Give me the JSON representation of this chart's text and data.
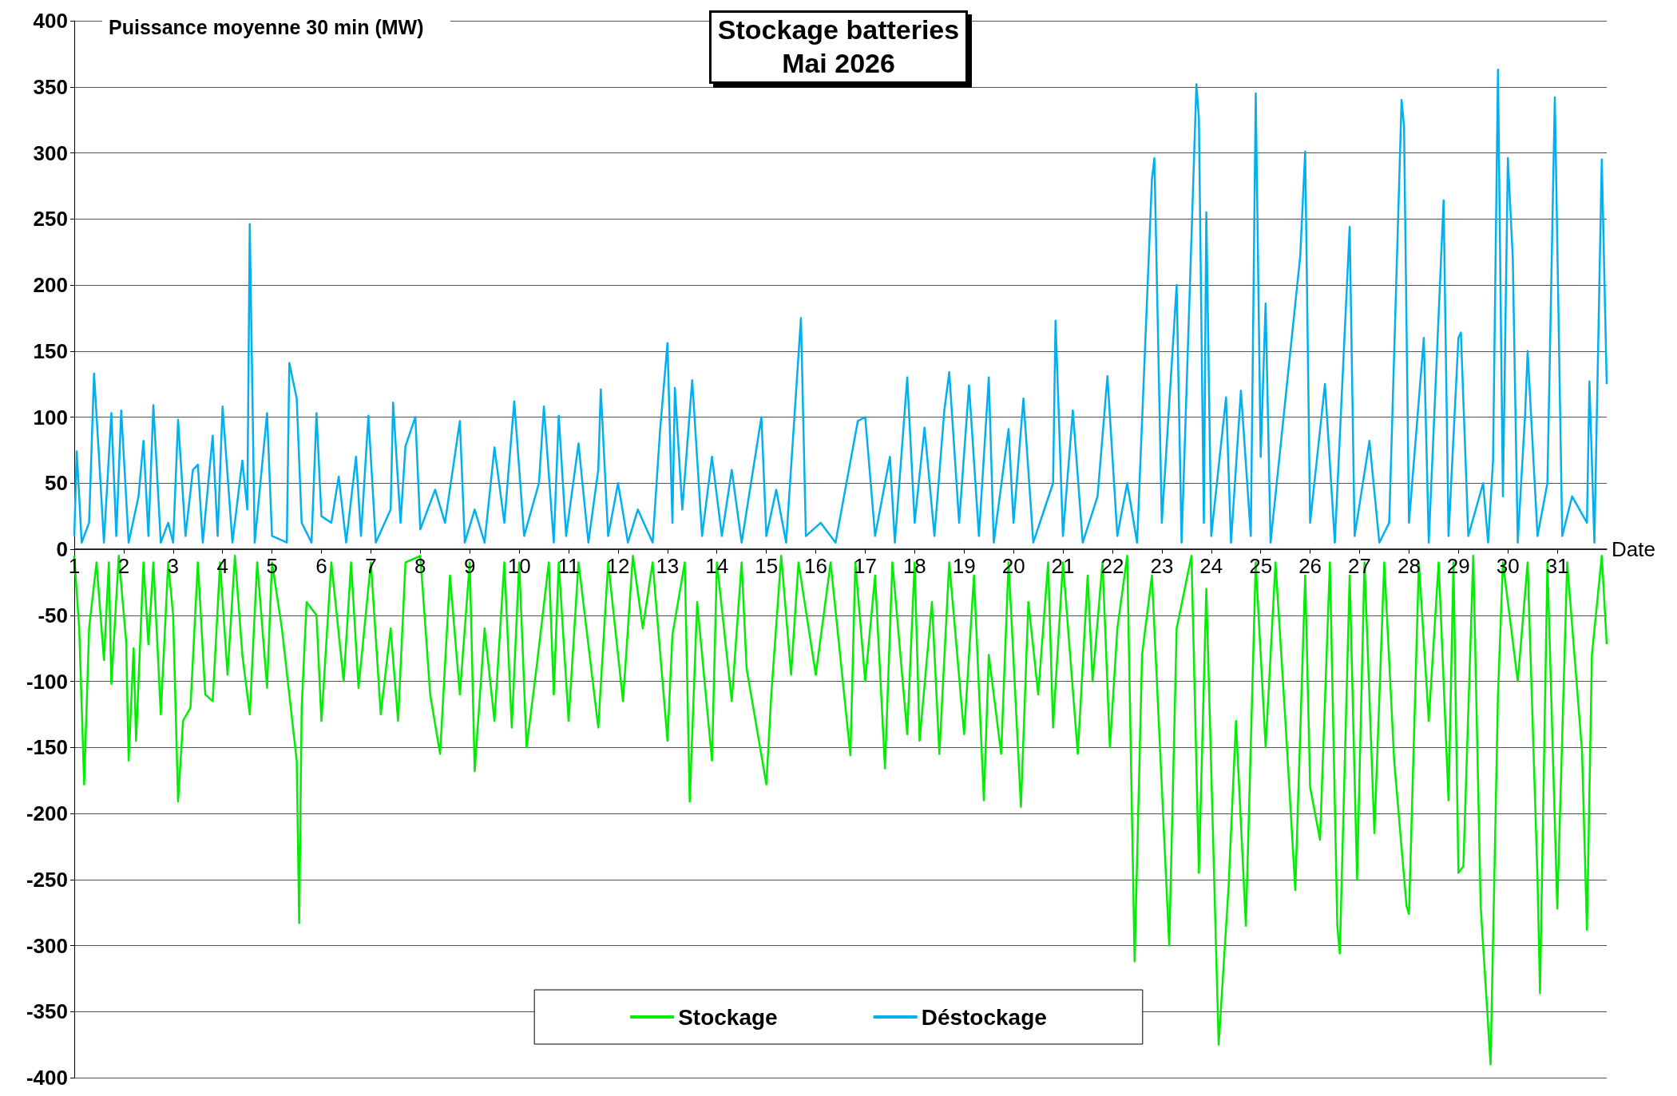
{
  "chart_data": {
    "type": "line",
    "title": "Stockage batteries",
    "subtitle": "Mai 2026",
    "ylabel": "Puissance moyenne 30 min (MW)",
    "xlabel": "Date",
    "xlim": [
      1,
      32
    ],
    "xticks": [
      1,
      2,
      3,
      4,
      5,
      6,
      7,
      8,
      9,
      10,
      11,
      12,
      13,
      14,
      15,
      16,
      17,
      18,
      19,
      20,
      21,
      22,
      23,
      24,
      25,
      26,
      27,
      28,
      29,
      30,
      31
    ],
    "ylim": [
      -400,
      400
    ],
    "yticks": [
      -400,
      -350,
      -300,
      -250,
      -200,
      -150,
      -100,
      -50,
      0,
      50,
      100,
      150,
      200,
      250,
      300,
      350,
      400
    ],
    "grid": "y",
    "legend": "bottom",
    "marker": "none",
    "line_style": "solid",
    "series": [
      {
        "name": "Stockage",
        "color": "#00ee00",
        "x": [
          1.0,
          1.1,
          1.2,
          1.3,
          1.45,
          1.6,
          1.7,
          1.75,
          1.9,
          2.05,
          2.1,
          2.2,
          2.25,
          2.4,
          2.5,
          2.6,
          2.75,
          2.9,
          3.0,
          3.1,
          3.2,
          3.35,
          3.5,
          3.65,
          3.8,
          3.95,
          4.1,
          4.25,
          4.4,
          4.55,
          4.7,
          4.9,
          5.0,
          5.2,
          5.5,
          5.55,
          5.6,
          5.7,
          5.9,
          6.0,
          6.2,
          6.45,
          6.6,
          6.75,
          7.0,
          7.2,
          7.4,
          7.55,
          7.7,
          8.0,
          8.2,
          8.4,
          8.6,
          8.8,
          9.0,
          9.1,
          9.3,
          9.5,
          9.7,
          9.85,
          10.0,
          10.15,
          10.35,
          10.6,
          10.7,
          10.8,
          11.0,
          11.2,
          11.6,
          11.8,
          12.1,
          12.3,
          12.5,
          12.7,
          13.0,
          13.1,
          13.35,
          13.45,
          13.6,
          13.9,
          14.0,
          14.3,
          14.5,
          14.6,
          15.0,
          15.1,
          15.3,
          15.5,
          15.65,
          16.0,
          16.3,
          16.7,
          16.8,
          17.0,
          17.2,
          17.4,
          17.55,
          17.85,
          18.0,
          18.1,
          18.35,
          18.5,
          18.7,
          19.0,
          19.2,
          19.4,
          19.5,
          19.75,
          19.9,
          20.15,
          20.3,
          20.5,
          20.7,
          20.8,
          21.0,
          21.3,
          21.5,
          21.6,
          21.8,
          21.95,
          22.1,
          22.3,
          22.45,
          22.6,
          22.8,
          23.15,
          23.3,
          23.6,
          23.75,
          23.9,
          24.15,
          24.35,
          24.5,
          24.7,
          24.9,
          25.1,
          25.3,
          25.5,
          25.7,
          25.9,
          26.0,
          26.2,
          26.4,
          26.55,
          26.6,
          26.8,
          26.95,
          27.1,
          27.3,
          27.5,
          27.7,
          27.95,
          28.0,
          28.2,
          28.4,
          28.6,
          28.8,
          28.9,
          29.0,
          29.1,
          29.3,
          29.45,
          29.65,
          29.8,
          29.9,
          30.2,
          30.4,
          30.6,
          30.65,
          30.8,
          31.0,
          31.2,
          31.5,
          31.6,
          31.7,
          31.9,
          32.0
        ],
        "values": [
          -5,
          -60,
          -178,
          -60,
          -10,
          -84,
          -10,
          -102,
          -5,
          -70,
          -160,
          -75,
          -145,
          -10,
          -72,
          -10,
          -125,
          -10,
          -50,
          -191,
          -130,
          -120,
          -10,
          -110,
          -115,
          -10,
          -95,
          -5,
          -80,
          -125,
          -10,
          -105,
          -10,
          -60,
          -160,
          -283,
          -120,
          -40,
          -50,
          -130,
          -10,
          -100,
          -10,
          -105,
          -10,
          -125,
          -60,
          -130,
          -10,
          -5,
          -110,
          -155,
          -20,
          -110,
          -10,
          -168,
          -60,
          -130,
          -10,
          -135,
          -10,
          -150,
          -90,
          -10,
          -110,
          -10,
          -130,
          -10,
          -135,
          -10,
          -115,
          -5,
          -60,
          -10,
          -145,
          -65,
          -10,
          -191,
          -40,
          -160,
          -10,
          -115,
          -10,
          -90,
          -178,
          -110,
          -5,
          -95,
          -10,
          -95,
          -10,
          -156,
          -10,
          -100,
          -20,
          -166,
          -10,
          -140,
          -10,
          -145,
          -40,
          -155,
          -10,
          -140,
          -20,
          -190,
          -80,
          -155,
          -10,
          -195,
          -40,
          -110,
          -10,
          -135,
          -10,
          -155,
          -20,
          -100,
          -10,
          -150,
          -60,
          -5,
          -312,
          -80,
          -20,
          -300,
          -60,
          -5,
          -245,
          -30,
          -375,
          -256,
          -130,
          -285,
          -10,
          -150,
          -10,
          -130,
          -258,
          -20,
          -180,
          -220,
          -10,
          -285,
          -306,
          -20,
          -250,
          -10,
          -215,
          -10,
          -160,
          -270,
          -276,
          -10,
          -130,
          -10,
          -190,
          -10,
          -245,
          -240,
          -5,
          -270,
          -390,
          -110,
          -10,
          -100,
          -10,
          -250,
          -336,
          -10,
          -272,
          -10,
          -153,
          -288,
          -80,
          -5,
          -72
        ]
      },
      {
        "name": "Déstockage",
        "color": "#00b0f0",
        "x": [
          1.0,
          1.05,
          1.15,
          1.3,
          1.4,
          1.5,
          1.6,
          1.75,
          1.85,
          1.95,
          2.1,
          2.3,
          2.4,
          2.5,
          2.6,
          2.75,
          2.9,
          3.0,
          3.1,
          3.25,
          3.4,
          3.5,
          3.6,
          3.8,
          3.9,
          4.0,
          4.2,
          4.4,
          4.5,
          4.55,
          4.65,
          4.9,
          5.0,
          5.3,
          5.35,
          5.5,
          5.6,
          5.8,
          5.9,
          6.0,
          6.2,
          6.35,
          6.5,
          6.7,
          6.8,
          6.95,
          7.1,
          7.4,
          7.45,
          7.6,
          7.7,
          7.9,
          8.0,
          8.3,
          8.5,
          8.8,
          8.9,
          9.1,
          9.3,
          9.5,
          9.7,
          9.9,
          10.1,
          10.4,
          10.5,
          10.7,
          10.8,
          10.95,
          11.2,
          11.4,
          11.6,
          11.65,
          11.8,
          12.0,
          12.2,
          12.4,
          12.7,
          12.85,
          13.0,
          13.1,
          13.15,
          13.3,
          13.5,
          13.7,
          13.9,
          14.1,
          14.3,
          14.5,
          14.9,
          15.0,
          15.2,
          15.4,
          15.7,
          15.8,
          16.1,
          16.4,
          16.85,
          17.0,
          17.2,
          17.5,
          17.6,
          17.85,
          18.0,
          18.2,
          18.4,
          18.6,
          18.7,
          18.9,
          19.1,
          19.3,
          19.5,
          19.6,
          19.9,
          20.0,
          20.2,
          20.4,
          20.8,
          20.85,
          21.0,
          21.2,
          21.4,
          21.7,
          21.9,
          22.1,
          22.3,
          22.5,
          22.8,
          22.85,
          23.0,
          23.3,
          23.4,
          23.7,
          23.75,
          23.85,
          23.9,
          24.0,
          24.3,
          24.4,
          24.6,
          24.8,
          24.9,
          25.0,
          25.1,
          25.2,
          25.8,
          25.9,
          26.0,
          26.3,
          26.5,
          26.8,
          26.9,
          27.2,
          27.4,
          27.6,
          27.85,
          27.9,
          28.0,
          28.3,
          28.4,
          28.7,
          28.8,
          29.0,
          29.05,
          29.2,
          29.5,
          29.6,
          29.7,
          29.8,
          29.9,
          30.0,
          30.1,
          30.2,
          30.35,
          30.4,
          30.6,
          30.8,
          30.95,
          31.1,
          31.3,
          31.6,
          31.65,
          31.75,
          31.9,
          32.0
        ],
        "values": [
          10,
          74,
          5,
          20,
          133,
          70,
          5,
          103,
          10,
          105,
          5,
          40,
          82,
          10,
          109,
          5,
          20,
          5,
          98,
          10,
          60,
          64,
          5,
          86,
          10,
          108,
          5,
          67,
          30,
          246,
          5,
          103,
          10,
          5,
          141,
          114,
          20,
          5,
          103,
          25,
          20,
          55,
          5,
          70,
          10,
          101,
          5,
          30,
          111,
          20,
          78,
          100,
          15,
          45,
          20,
          97,
          5,
          30,
          5,
          77,
          20,
          112,
          10,
          50,
          108,
          5,
          101,
          10,
          80,
          5,
          60,
          121,
          10,
          50,
          5,
          30,
          5,
          90,
          156,
          20,
          122,
          30,
          128,
          10,
          70,
          10,
          60,
          5,
          100,
          10,
          45,
          5,
          175,
          10,
          20,
          5,
          97,
          100,
          10,
          70,
          5,
          130,
          20,
          92,
          10,
          105,
          134,
          20,
          124,
          10,
          130,
          5,
          91,
          20,
          114,
          5,
          50,
          173,
          10,
          105,
          5,
          40,
          131,
          10,
          50,
          5,
          280,
          296,
          20,
          200,
          5,
          352,
          326,
          20,
          255,
          10,
          115,
          5,
          120,
          10,
          345,
          70,
          186,
          5,
          222,
          301,
          20,
          125,
          5,
          244,
          10,
          82,
          5,
          20,
          340,
          320,
          20,
          160,
          5,
          264,
          10,
          160,
          164,
          10,
          50,
          5,
          67,
          363,
          40,
          296,
          220,
          5,
          103,
          150,
          10,
          50,
          342,
          10,
          40,
          20,
          127,
          5,
          295,
          125
        ]
      }
    ]
  }
}
